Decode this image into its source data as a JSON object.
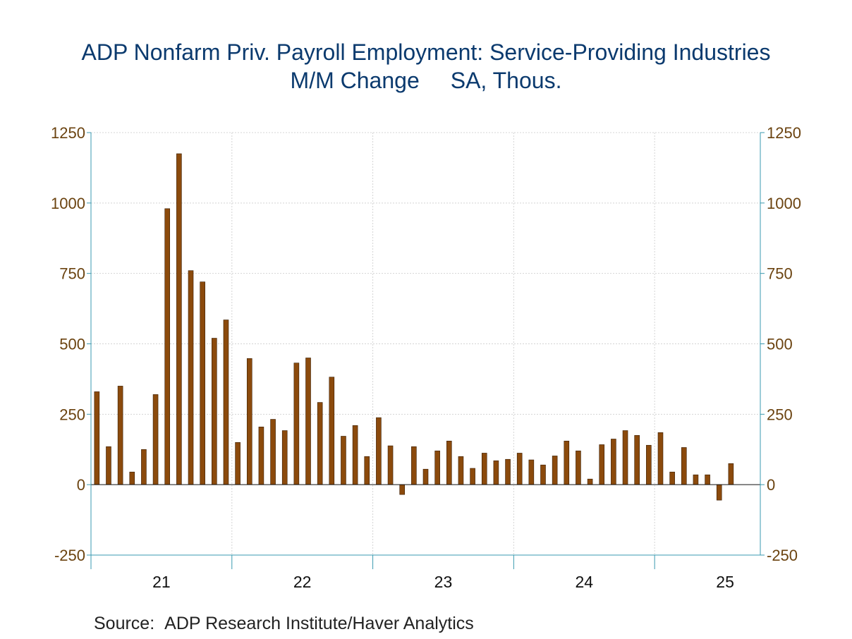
{
  "chart_data": {
    "type": "bar",
    "title_line1": "ADP Nonfarm Priv. Payroll Employment: Service-Providing Industries",
    "title_line2_left": "M/M Change",
    "title_line2_right": "SA, Thous.",
    "source_label": "Source:",
    "source_text": "ADP Research Institute/Haver Analytics",
    "start_period": "2021-01",
    "ylim": [
      -250,
      1250
    ],
    "yticks": [
      -250,
      0,
      250,
      500,
      750,
      1000,
      1250
    ],
    "x_tick_labels": [
      "21",
      "22",
      "23",
      "24",
      "25"
    ],
    "grid": true,
    "bar_color": "#8b4a0c",
    "axis_color": "#3a9ab0",
    "tick_label_color": "#6b4310",
    "values": [
      330,
      135,
      350,
      45,
      125,
      320,
      980,
      1175,
      760,
      720,
      520,
      585,
      150,
      448,
      205,
      232,
      192,
      432,
      450,
      292,
      382,
      172,
      210,
      100,
      238,
      138,
      -35,
      135,
      55,
      120,
      155,
      100,
      58,
      112,
      85,
      90,
      112,
      88,
      70,
      102,
      155,
      120,
      20,
      142,
      162,
      192,
      175,
      140,
      185,
      45,
      132,
      35,
      35,
      -55,
      75
    ]
  }
}
